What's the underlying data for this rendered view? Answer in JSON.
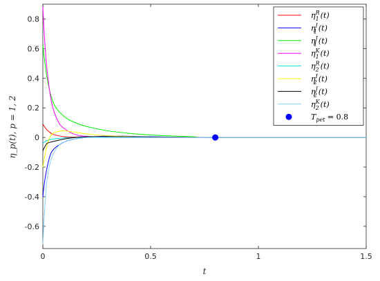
{
  "chart_data": {
    "type": "line",
    "xlabel": "t",
    "ylabel": "η_p(t), p = 1, 2",
    "xlim": [
      0,
      1.5
    ],
    "ylim": [
      -0.75,
      0.9
    ],
    "x_ticks": [
      0,
      0.5,
      1,
      1.5
    ],
    "x_tick_labels": [
      "0",
      "0.5",
      "1",
      "1.5"
    ],
    "y_ticks": [
      -0.6,
      -0.4,
      -0.2,
      0,
      0.2,
      0.4,
      0.6,
      0.8
    ],
    "y_tick_labels": [
      "-0.6",
      "-0.4",
      "-0.2",
      "0",
      "0.2",
      "0.4",
      "0.6",
      "0.8"
    ],
    "grid": false,
    "legend_position": "top-right",
    "series": [
      {
        "name": "η₁ᴿ(t)",
        "color": "#ff0000",
        "x": [
          0,
          0.02,
          0.05,
          0.1,
          0.15,
          0.2,
          0.3,
          0.5,
          0.8,
          1.5
        ],
        "y": [
          0.09,
          0.05,
          0.02,
          0.005,
          0.002,
          0.001,
          0,
          0,
          0,
          0
        ]
      },
      {
        "name": "η₁ᴵ(t)",
        "color": "#0000ff",
        "x": [
          0,
          0.01,
          0.03,
          0.05,
          0.1,
          0.15,
          0.2,
          0.3,
          0.4,
          0.5,
          0.6,
          0.8,
          1.5
        ],
        "y": [
          -0.4,
          -0.28,
          -0.14,
          -0.08,
          -0.03,
          -0.01,
          0.0,
          0.01,
          0.008,
          0.005,
          0.003,
          0,
          0
        ]
      },
      {
        "name": "η₁ᴶ(t)",
        "color": "#00ee00",
        "x": [
          0,
          0.02,
          0.05,
          0.1,
          0.15,
          0.2,
          0.3,
          0.4,
          0.5,
          0.6,
          0.7,
          0.8,
          1.5
        ],
        "y": [
          0.62,
          0.4,
          0.23,
          0.14,
          0.1,
          0.075,
          0.045,
          0.028,
          0.017,
          0.01,
          0.005,
          0,
          0
        ]
      },
      {
        "name": "η₁ᴷ(t)",
        "color": "#ff00ff",
        "x": [
          0,
          0.01,
          0.02,
          0.04,
          0.07,
          0.1,
          0.15,
          0.2,
          0.3,
          0.5,
          0.8,
          1.5
        ],
        "y": [
          0.88,
          0.62,
          0.45,
          0.24,
          0.11,
          0.06,
          0.02,
          0.008,
          0.002,
          0,
          0,
          0
        ]
      },
      {
        "name": "η₂ᴿ(t)",
        "color": "#00e0e0",
        "x": [
          0,
          0.02,
          0.05,
          0.1,
          0.15,
          0.2,
          0.3,
          0.5,
          0.8,
          1.5
        ],
        "y": [
          -0.04,
          -0.02,
          -0.01,
          -0.003,
          0,
          0,
          0,
          0,
          0,
          0
        ]
      },
      {
        "name": "η₂ᴵ(t)",
        "color": "#ffff00",
        "x": [
          0,
          0.02,
          0.04,
          0.07,
          0.1,
          0.15,
          0.2,
          0.3,
          0.5,
          0.8,
          1.5
        ],
        "y": [
          -0.2,
          -0.05,
          0.02,
          0.04,
          0.045,
          0.035,
          0.025,
          0.012,
          0.003,
          0,
          0
        ]
      },
      {
        "name": "η₂ᴶ(t)",
        "color": "#000000",
        "x": [
          0,
          0.01,
          0.02,
          0.04,
          0.07,
          0.1,
          0.15,
          0.2,
          0.3,
          0.5,
          0.8,
          1.5
        ],
        "y": [
          -0.09,
          -0.06,
          -0.04,
          -0.03,
          -0.02,
          -0.01,
          0,
          0.005,
          0.006,
          0.003,
          0,
          0
        ]
      },
      {
        "name": "η₂ᴷ(t)",
        "color": "#80d0ff",
        "x": [
          0,
          0.01,
          0.02,
          0.04,
          0.07,
          0.1,
          0.15,
          0.2,
          0.3,
          0.5,
          0.8,
          1.5
        ],
        "y": [
          -0.72,
          -0.45,
          -0.28,
          -0.14,
          -0.06,
          -0.03,
          -0.01,
          0,
          0.002,
          0.001,
          0,
          0
        ]
      }
    ],
    "marker": {
      "name": "T_pet = 0.8",
      "x": 0.8,
      "y": 0,
      "color": "#0000ff"
    },
    "legend": [
      {
        "base": "η",
        "sub": "1",
        "sup": "R",
        "arg": "(t)",
        "color": "#ff0000"
      },
      {
        "base": "η",
        "sub": "1",
        "sup": "I",
        "arg": "(t)",
        "color": "#0000ff"
      },
      {
        "base": "η",
        "sub": "1",
        "sup": "J",
        "arg": "(t)",
        "color": "#00ee00"
      },
      {
        "base": "η",
        "sub": "1",
        "sup": "K",
        "arg": "(t)",
        "color": "#ff00ff"
      },
      {
        "base": "η",
        "sub": "2",
        "sup": "R",
        "arg": "(t)",
        "color": "#00e0e0"
      },
      {
        "base": "η",
        "sub": "2",
        "sup": "I",
        "arg": "(t)",
        "color": "#ffff00"
      },
      {
        "base": "η",
        "sub": "2",
        "sup": "J",
        "arg": "(t)",
        "color": "#000000"
      },
      {
        "base": "η",
        "sub": "2",
        "sup": "K",
        "arg": "(t)",
        "color": "#80d0ff"
      },
      {
        "base": "T",
        "sub": "pet",
        "sup": "",
        "arg": " = 0.8",
        "color": "#0000ff",
        "is_marker": true
      }
    ]
  }
}
